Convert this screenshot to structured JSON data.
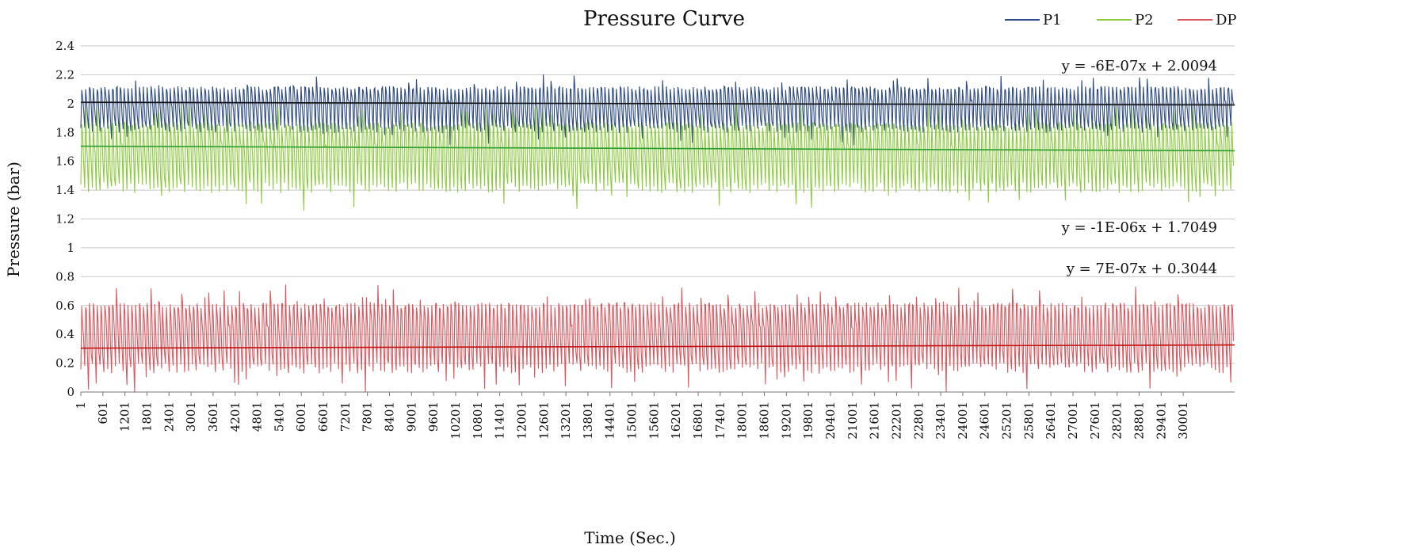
{
  "chart_data": {
    "type": "line",
    "title": "Pressure Curve",
    "xlabel": "Time (Sec.)",
    "ylabel": "Pressure (bar)",
    "ylim": [
      0,
      2.4
    ],
    "yticks": [
      0,
      0.2,
      0.4,
      0.6,
      0.8,
      1,
      1.2,
      1.4,
      1.6,
      1.8,
      2,
      2.2,
      2.4
    ],
    "ytick_labels": [
      "0",
      "0.2",
      "0.4",
      "0.6",
      "0.8",
      "1",
      "1.2",
      "1.4",
      "1.6",
      "1.8",
      "2",
      "2.2",
      "2.4"
    ],
    "xlim": [
      1,
      31400
    ],
    "xtick_labels": [
      "1",
      "601",
      "1201",
      "1801",
      "2401",
      "3001",
      "3601",
      "4201",
      "4801",
      "5401",
      "6001",
      "6601",
      "7201",
      "7801",
      "8401",
      "9001",
      "9601",
      "10201",
      "10801",
      "11401",
      "12001",
      "12601",
      "13201",
      "13801",
      "14401",
      "15001",
      "15601",
      "16201",
      "16801",
      "17401",
      "18001",
      "18601",
      "19201",
      "19801",
      "20401",
      "21001",
      "21601",
      "22201",
      "22801",
      "23401",
      "24001",
      "24601",
      "25201",
      "25801",
      "26401",
      "27001",
      "27601",
      "28201",
      "28801",
      "29401",
      "30001"
    ],
    "grid": true,
    "legend_position": "top-right",
    "series": [
      {
        "name": "P1",
        "color": "#2e4a85",
        "low": 1.8,
        "high": 2.12,
        "baseline": 1.95
      },
      {
        "name": "P2",
        "color": "#8ccb3f",
        "low": 1.38,
        "high": 1.87,
        "baseline": 1.58
      },
      {
        "name": "DP",
        "color": "#d9585f",
        "low": 0.13,
        "high": 0.62,
        "baseline": 0.3
      }
    ],
    "trendlines": [
      {
        "series": "P1",
        "equation": "y = -6E-07x + 2.0094",
        "slope": -6e-07,
        "intercept": 2.0094,
        "color": "#111111"
      },
      {
        "series": "P2",
        "equation": "y = -1E-06x + 1.7049",
        "slope": -1e-06,
        "intercept": 1.7049,
        "color": "#2aa02a"
      },
      {
        "series": "DP",
        "equation": "y = 7E-07x + 0.3044",
        "slope": 7e-07,
        "intercept": 0.3044,
        "color": "#c01010"
      }
    ]
  }
}
